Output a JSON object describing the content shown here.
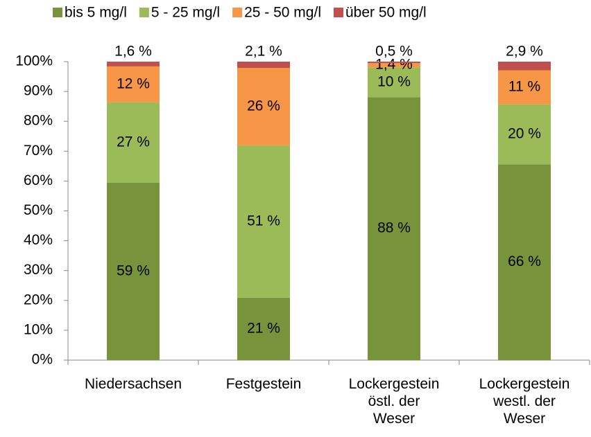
{
  "chart_data": {
    "type": "stacked-bar",
    "categories": [
      "Niedersachsen",
      "Festgestein",
      "Lockergestein\nöstl. der\nWeser",
      "Lockergestein\nwestl. der\nWeser"
    ],
    "series": [
      {
        "name": "bis 5 mg/l",
        "color": "#77933c",
        "values": [
          59.4,
          20.9,
          88.1,
          65.6
        ],
        "value_labels": [
          "59 %",
          "21 %",
          "88 %",
          "66 %"
        ]
      },
      {
        "name": "5 - 25 mg/l",
        "color": "#9bbb59",
        "values": [
          27,
          51,
          10,
          20.1
        ],
        "value_labels": [
          "27 %",
          "51 %",
          "10 %",
          "20 %"
        ]
      },
      {
        "name": "25 - 50 mg/l",
        "color": "#f79646",
        "values": [
          12,
          26,
          1.4,
          11.4
        ],
        "value_labels": [
          "12 %",
          "26 %",
          "1,4 %",
          "11 %"
        ]
      },
      {
        "name": "über 50 mg/l",
        "color": "#c0504d",
        "values": [
          1.6,
          2.1,
          0.5,
          2.9
        ],
        "value_labels": [
          "1,6 %",
          "2,1 %",
          "0,5 %",
          "2,9 %"
        ]
      }
    ],
    "ylim": [
      0,
      100
    ],
    "yticks": [
      {
        "value": 0,
        "label": "0%"
      },
      {
        "value": 10,
        "label": "10%"
      },
      {
        "value": 20,
        "label": "20%"
      },
      {
        "value": 30,
        "label": "30%"
      },
      {
        "value": 40,
        "label": "40%"
      },
      {
        "value": 50,
        "label": "50%"
      },
      {
        "value": 60,
        "label": "60%"
      },
      {
        "value": 70,
        "label": "70%"
      },
      {
        "value": 80,
        "label": "80%"
      },
      {
        "value": 90,
        "label": "90%"
      },
      {
        "value": 100,
        "label": "100%"
      }
    ],
    "legend": "top",
    "grid": false
  }
}
